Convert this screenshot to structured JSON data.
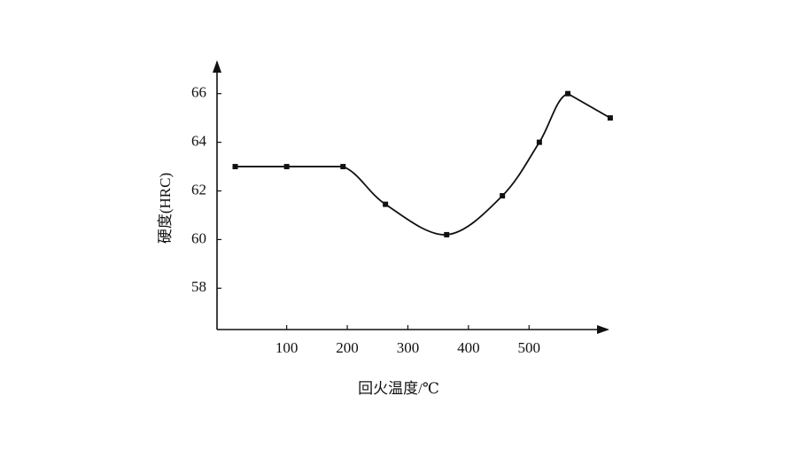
{
  "chart_data": {
    "type": "line",
    "x_label": "回火温度/℃",
    "y_label": "硬度(HRC)",
    "x": [
      15,
      100,
      193,
      263,
      364,
      456,
      517,
      564,
      634
    ],
    "series": [
      {
        "color": "#111111",
        "values": [
          63,
          63,
          63,
          61.45,
          60.2,
          61.8,
          64,
          66,
          65
        ]
      }
    ],
    "xlim": [
      -15,
      640
    ],
    "ylim": [
      56.3,
      67.3
    ],
    "xticks": [
      100,
      200,
      300,
      400,
      500
    ],
    "yticks": [
      58,
      60,
      62,
      64,
      66
    ]
  }
}
